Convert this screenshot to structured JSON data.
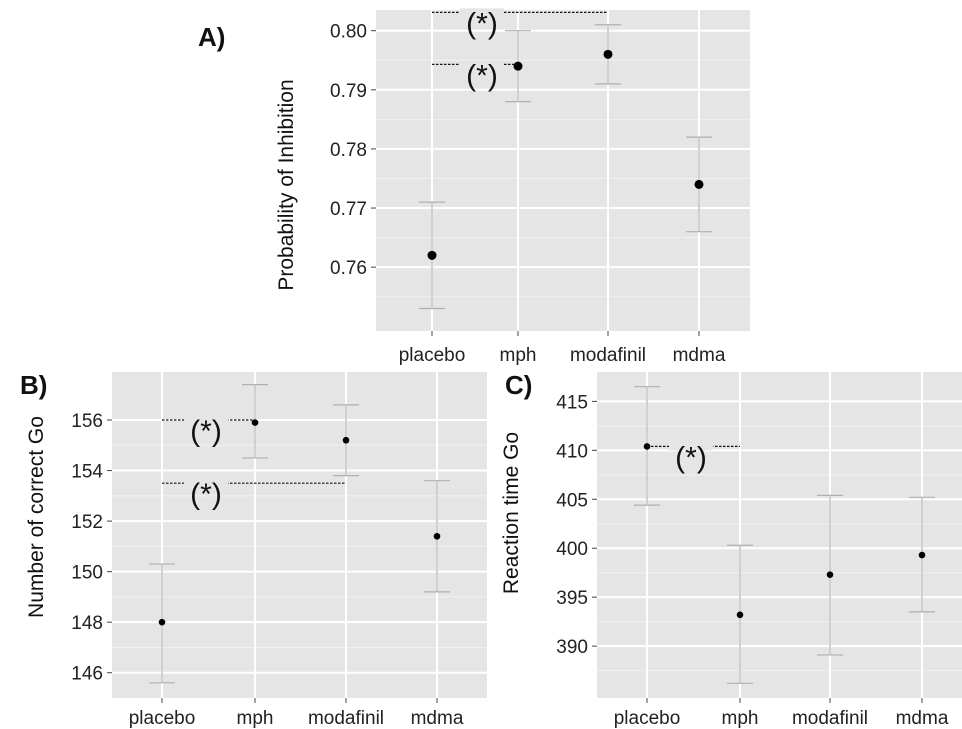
{
  "chart_data": [
    {
      "type": "scatter",
      "panel_label": "A)",
      "title": "",
      "xlabel": "",
      "ylabel": "Probability of Inhibition",
      "categories": [
        "placebo",
        "mph",
        "modafinil",
        "mdma"
      ],
      "values": [
        0.762,
        0.794,
        0.796,
        0.774
      ],
      "error_low": [
        0.753,
        0.788,
        0.791,
        0.766
      ],
      "error_high": [
        0.771,
        0.8,
        0.801,
        0.782
      ],
      "ylim": [
        0.7492,
        0.8035
      ],
      "yticks": [
        0.76,
        0.77,
        0.78,
        0.79,
        0.8
      ],
      "ytick_labels": [
        "0.76",
        "0.77",
        "0.78",
        "0.79",
        "0.80"
      ],
      "grid": true,
      "annotations": [
        {
          "text": "(*)",
          "from": "placebo",
          "to": "mph",
          "y": 0.7943
        },
        {
          "text": "(*)",
          "from": "placebo",
          "to": "modafinil",
          "y": 0.8031
        }
      ]
    },
    {
      "type": "scatter",
      "panel_label": "B)",
      "title": "",
      "xlabel": "",
      "ylabel": "Number of correct Go",
      "categories": [
        "placebo",
        "mph",
        "modafinil",
        "mdma"
      ],
      "values": [
        148.0,
        155.9,
        155.2,
        151.4
      ],
      "error_low": [
        145.6,
        154.5,
        153.8,
        149.2
      ],
      "error_high": [
        150.3,
        157.4,
        156.6,
        153.6
      ],
      "ylim": [
        145.0,
        157.9
      ],
      "yticks": [
        146,
        148,
        150,
        152,
        154,
        156
      ],
      "ytick_labels": [
        "146",
        "148",
        "150",
        "152",
        "154",
        "156"
      ],
      "grid": true,
      "annotations": [
        {
          "text": "(*)",
          "from": "placebo",
          "to": "mph",
          "y": 156.0
        },
        {
          "text": "(*)",
          "from": "placebo",
          "to": "modafinil",
          "y": 153.5
        }
      ]
    },
    {
      "type": "scatter",
      "panel_label": "C)",
      "title": "",
      "xlabel": "",
      "ylabel": "Reaction time Go",
      "categories": [
        "placebo",
        "mph",
        "modafinil",
        "mdma"
      ],
      "values": [
        410.4,
        393.2,
        397.3,
        399.3
      ],
      "error_low": [
        404.4,
        386.2,
        389.1,
        393.5
      ],
      "error_high": [
        416.5,
        400.3,
        405.4,
        405.2
      ],
      "ylim": [
        384.7,
        418.0
      ],
      "yticks": [
        390,
        395,
        400,
        405,
        410,
        415
      ],
      "ytick_labels": [
        "390",
        "395",
        "400",
        "405",
        "410",
        "415"
      ],
      "grid": true,
      "annotations": [
        {
          "text": "(*)",
          "from": "placebo",
          "to": "mph",
          "y": 410.4
        }
      ]
    }
  ]
}
